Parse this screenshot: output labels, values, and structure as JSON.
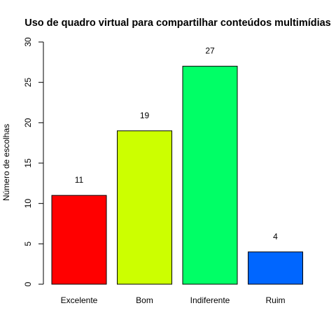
{
  "chart_data": {
    "type": "bar",
    "title": "Uso de quadro virtual para compartilhar conteúdos multimídias",
    "xlabel": "",
    "ylabel": "Número de escolhas",
    "ylim": [
      0,
      30
    ],
    "yticks": [
      0,
      5,
      10,
      15,
      20,
      25,
      30
    ],
    "grid": false,
    "categories": [
      "Excelente",
      "Bom",
      "Indiferente",
      "Ruim"
    ],
    "values": [
      11,
      19,
      27,
      4
    ],
    "data_labels": [
      "11",
      "19",
      "27",
      "4"
    ],
    "colors": [
      "#FF0000",
      "#CCFF00",
      "#00FF66",
      "#0066FF"
    ]
  }
}
